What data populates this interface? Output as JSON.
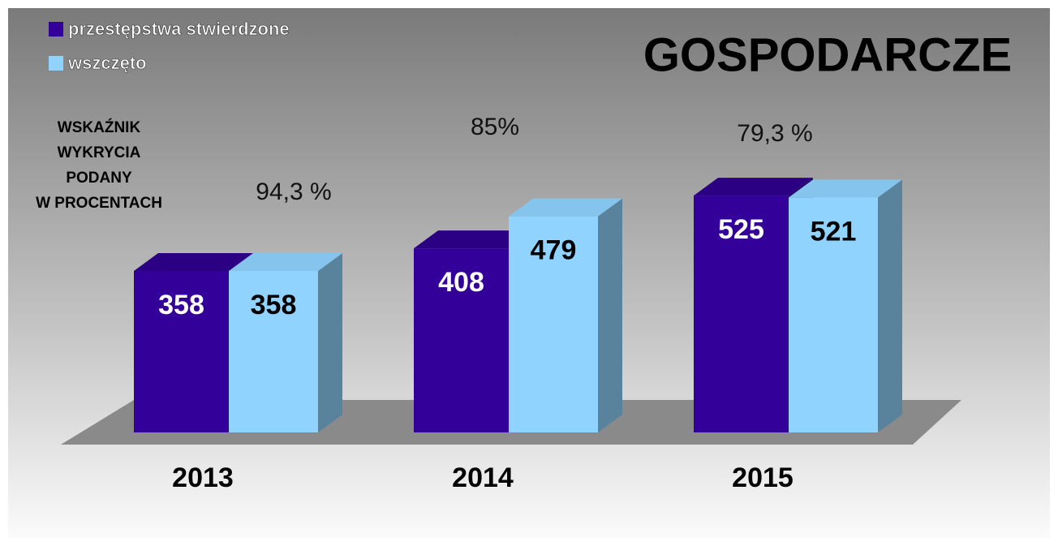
{
  "chart_data": {
    "type": "bar3d",
    "title": "GOSPODARCZE",
    "note": [
      "WSKAŹNIK",
      "WYKRYCIA",
      "PODANY",
      "W PROCENTACH"
    ],
    "categories": [
      "2013",
      "2014",
      "2015"
    ],
    "annotations": [
      "94,3 %",
      "85%",
      "79,3 %"
    ],
    "series": [
      {
        "name": "przestępstwa stwierdzone",
        "color": "#330099",
        "values": [
          358,
          408,
          525
        ]
      },
      {
        "name": "wszczęto",
        "color": "#8fd3fe",
        "values": [
          358,
          479,
          521
        ]
      }
    ]
  }
}
